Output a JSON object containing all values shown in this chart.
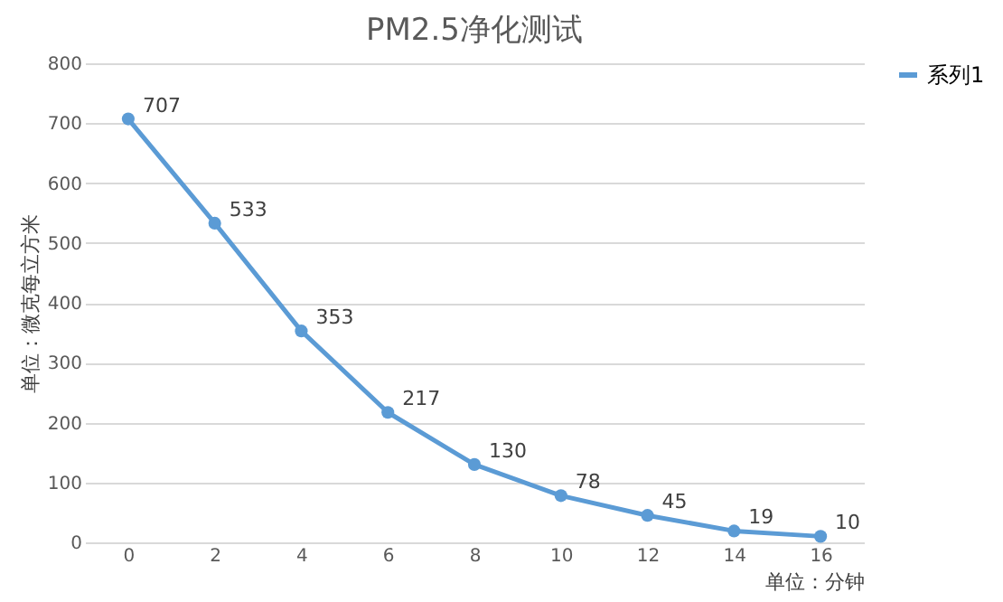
{
  "chart_data": {
    "type": "line",
    "title": "PM2.5净化测试",
    "xlabel": "单位：分钟",
    "ylabel": "单位：微克每立方米",
    "categories": [
      "0",
      "2",
      "4",
      "6",
      "8",
      "10",
      "12",
      "14",
      "16"
    ],
    "series": [
      {
        "name": "系列1",
        "color": "#5b9bd5",
        "values": [
          707,
          533,
          353,
          217,
          130,
          78,
          45,
          19,
          10
        ]
      }
    ],
    "ylim": [
      0,
      800
    ],
    "yticks": [
      0,
      100,
      200,
      300,
      400,
      500,
      600,
      700,
      800
    ],
    "grid": "y",
    "legend": "right",
    "marker": "circle",
    "line_style": "solid",
    "data_labels": true
  }
}
